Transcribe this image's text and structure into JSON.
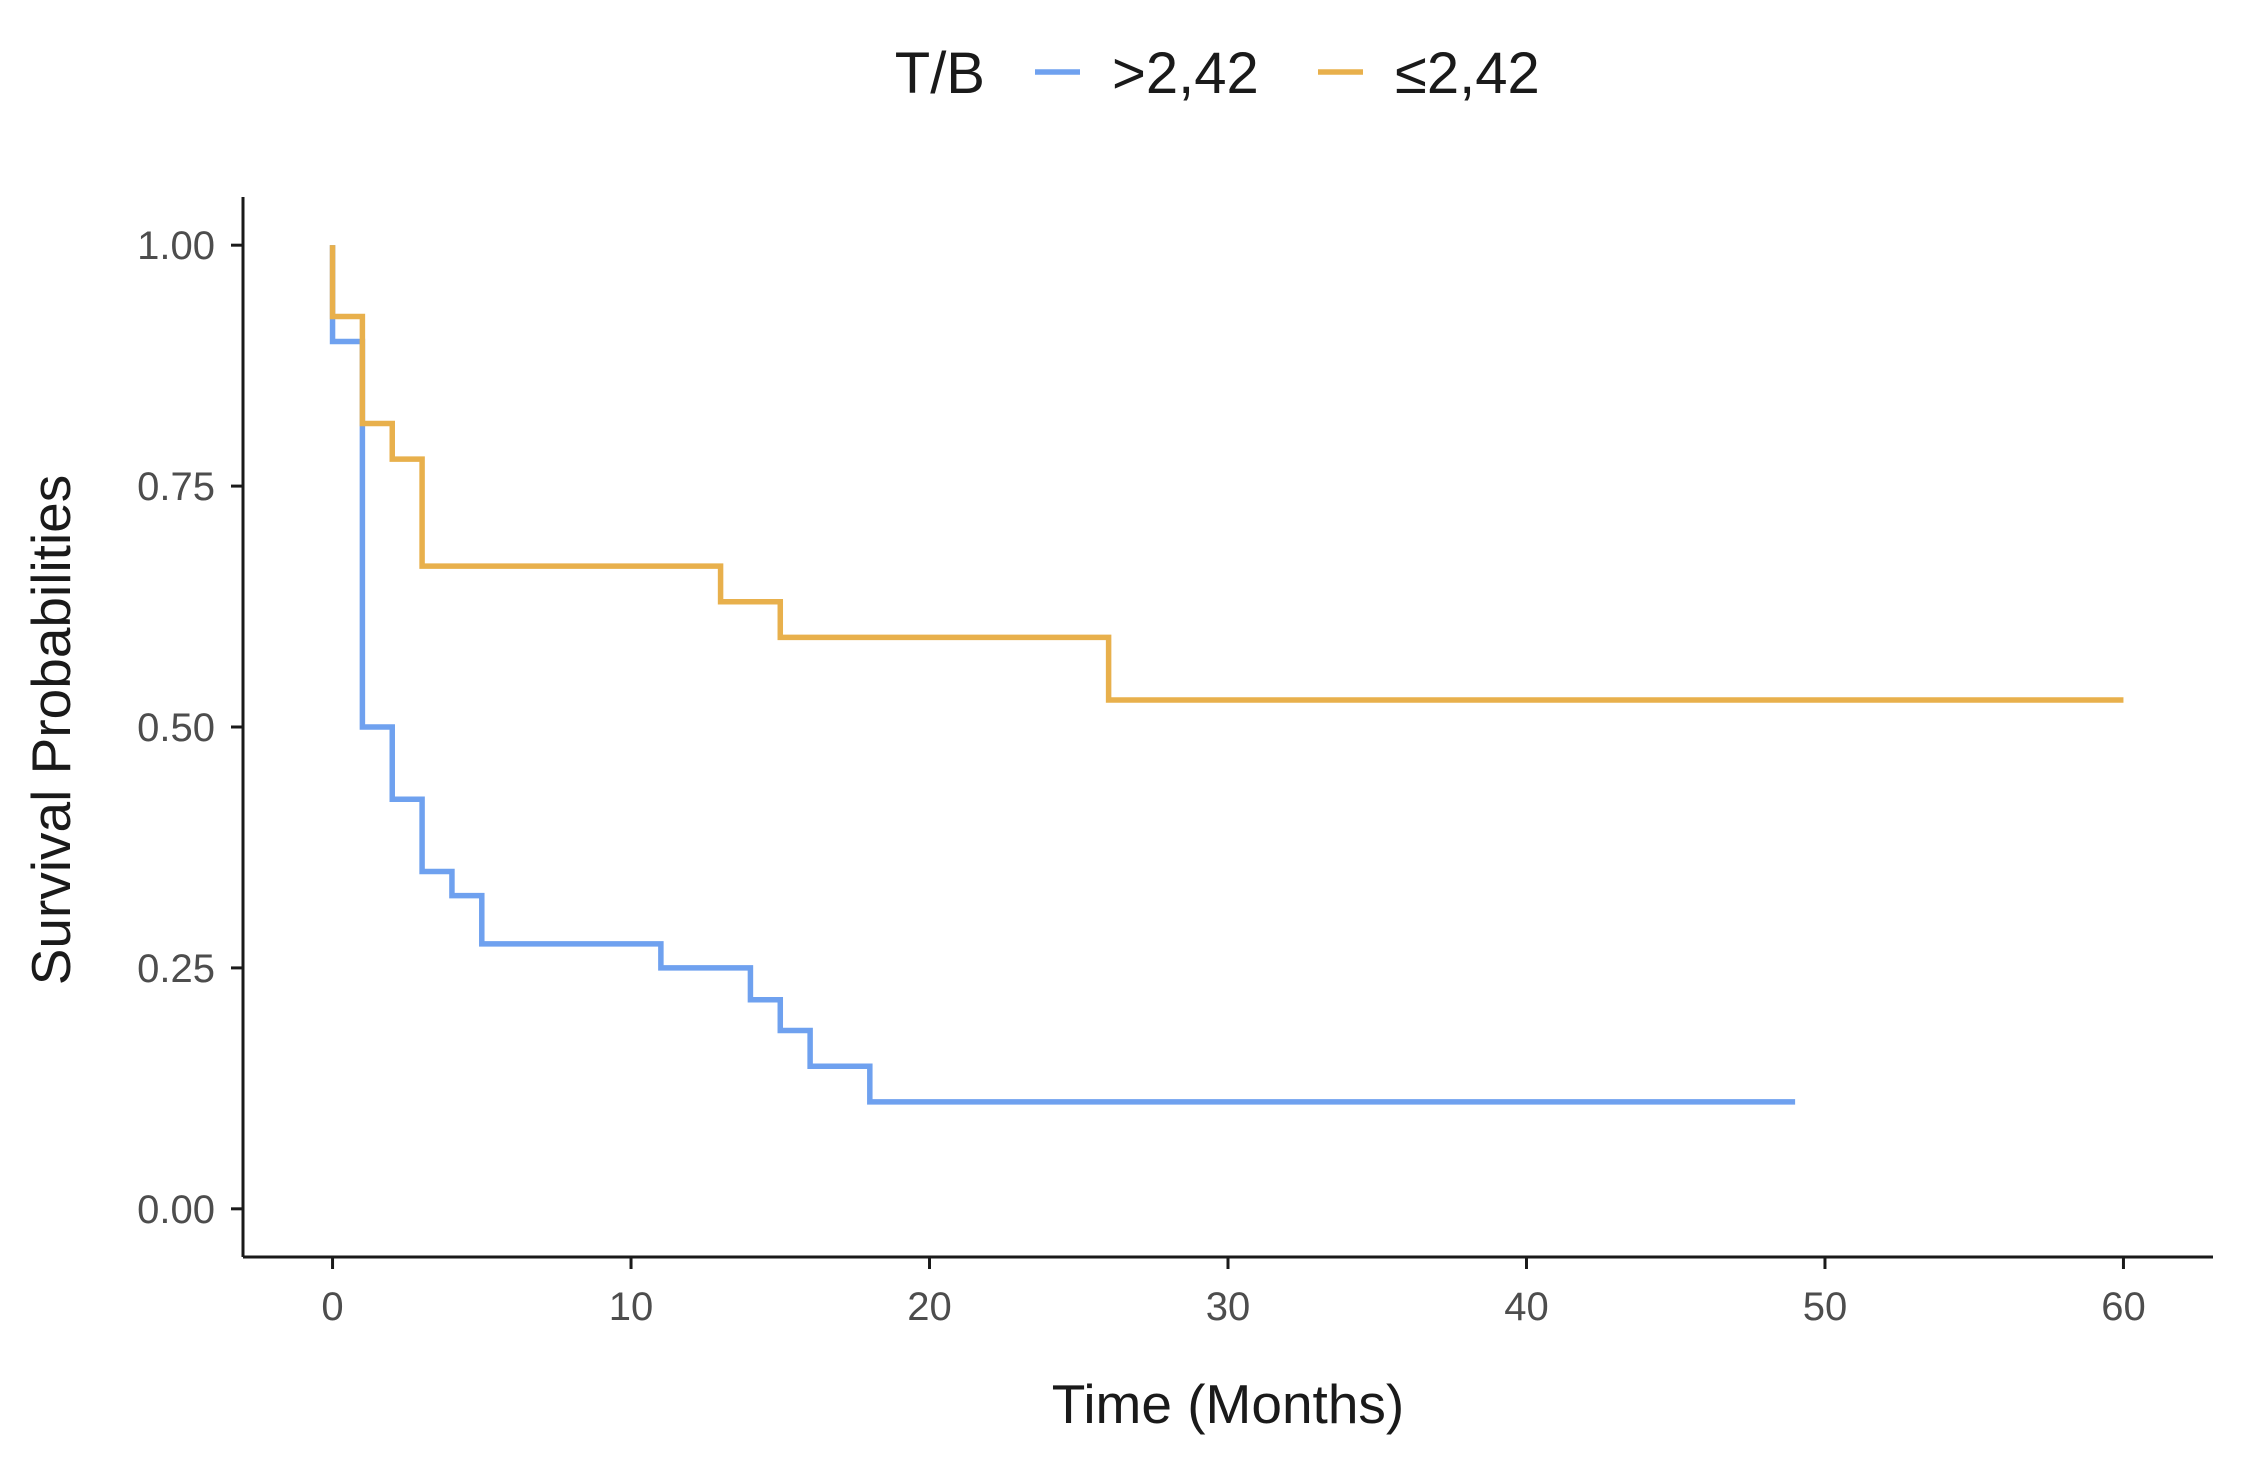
{
  "chart_data": {
    "type": "line",
    "subtype": "kaplan-meier step",
    "xlabel": "Time (Months)",
    "ylabel": "Survival Probabilities",
    "xlim": [
      -3,
      63
    ],
    "ylim": [
      -0.05,
      1.05
    ],
    "x_ticks": [
      0,
      10,
      20,
      30,
      40,
      50,
      60
    ],
    "x_tick_labels": [
      "0",
      "10",
      "20",
      "30",
      "40",
      "50",
      "60"
    ],
    "y_ticks": [
      0,
      0.25,
      0.5,
      0.75,
      1.0
    ],
    "y_tick_labels": [
      "0.00",
      "0.25",
      "0.50",
      "0.75",
      "1.00"
    ],
    "grid": false,
    "legend": {
      "title": "T/B",
      "position": "top"
    },
    "series": [
      {
        "name": ">2,42",
        "color": "#6fa1ef",
        "x": [
          0,
          1,
          2,
          3,
          4,
          5,
          11,
          14,
          15,
          16,
          18,
          49
        ],
        "y": [
          0.9,
          0.5,
          0.425,
          0.35,
          0.325,
          0.275,
          0.25,
          0.217,
          0.185,
          0.148,
          0.111,
          0.111
        ]
      },
      {
        "name": "≤2,42",
        "color": "#e8b04c",
        "x": [
          0,
          1,
          2,
          3,
          13,
          15,
          26,
          60
        ],
        "y": [
          0.926,
          0.815,
          0.778,
          0.667,
          0.63,
          0.593,
          0.528,
          0.528
        ]
      }
    ]
  }
}
